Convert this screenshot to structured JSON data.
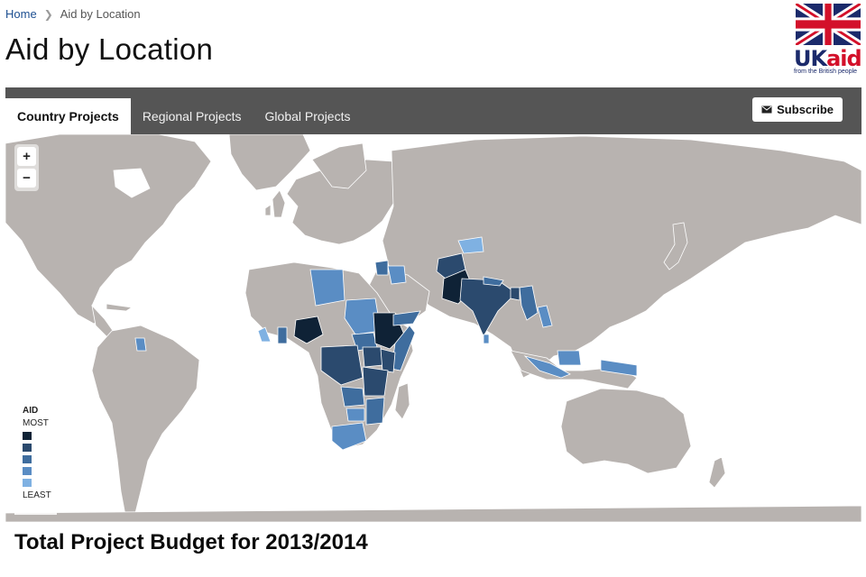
{
  "breadcrumb": {
    "home": "Home",
    "current": "Aid by Location"
  },
  "page": {
    "title": "Aid by Location",
    "budget_title": "Total Project Budget for 2013/2014"
  },
  "logo": {
    "uk": "UK",
    "aid": "aid",
    "tagline": "from the British people"
  },
  "tabs": [
    {
      "label": "Country Projects",
      "active": true
    },
    {
      "label": "Regional Projects",
      "active": false
    },
    {
      "label": "Global Projects",
      "active": false
    }
  ],
  "subscribe": {
    "label": "Subscribe",
    "icon": "envelope-icon"
  },
  "map": {
    "zoom_in_label": "+",
    "zoom_out_label": "−",
    "land_color": "#b8b3b0",
    "water_color": "#ffffff"
  },
  "legend": {
    "title": "AID",
    "most_label": "MOST",
    "least_label": "LEAST",
    "colors": [
      "#0f2236",
      "#2b4a6e",
      "#3f6d9e",
      "#5a8dc4",
      "#7fb1e2"
    ]
  }
}
